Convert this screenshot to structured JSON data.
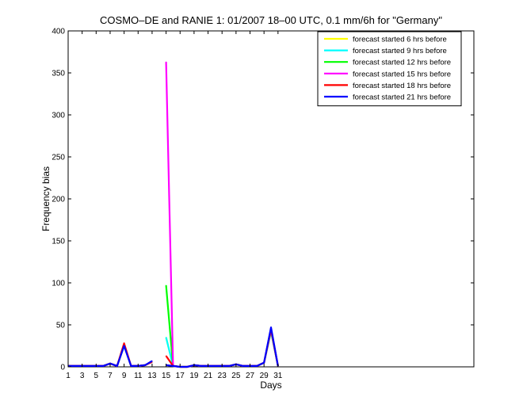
{
  "chart_data": {
    "type": "line",
    "title": "COSMO–DE and RANIE 1: 01/2007 18–00 UTC, 0.1 mm/6h for \"Germany\"",
    "xlabel": "Days",
    "ylabel": "Frequency bias",
    "xlim": [
      1,
      59
    ],
    "ylim": [
      0,
      400
    ],
    "xticks": [
      1,
      3,
      5,
      7,
      9,
      11,
      13,
      15,
      17,
      19,
      21,
      23,
      25,
      27,
      29,
      31
    ],
    "yticks": [
      0,
      50,
      100,
      150,
      200,
      250,
      300,
      350,
      400
    ],
    "grid": false,
    "legend_position": "top-right",
    "series": [
      {
        "name": "forecast started 6 hrs before",
        "color": "#ffff00",
        "points": [
          [
            1,
            1
          ],
          [
            2,
            1
          ],
          [
            3,
            1
          ],
          [
            4,
            1
          ],
          [
            5,
            1
          ],
          [
            6,
            1
          ],
          [
            7,
            4
          ],
          [
            8,
            1
          ],
          [
            9,
            25
          ],
          [
            10,
            1
          ],
          [
            11,
            1
          ],
          [
            12,
            2
          ],
          [
            13,
            6
          ],
          [
            14,
            null
          ],
          [
            15,
            35
          ],
          [
            16,
            1
          ],
          [
            17,
            0
          ],
          [
            18,
            0
          ],
          [
            19,
            2
          ],
          [
            20,
            1
          ],
          [
            21,
            1
          ],
          [
            22,
            1
          ],
          [
            23,
            1
          ],
          [
            24,
            1
          ],
          [
            25,
            3
          ],
          [
            26,
            1
          ],
          [
            27,
            1
          ],
          [
            28,
            1
          ],
          [
            29,
            5
          ],
          [
            30,
            42
          ],
          [
            31,
            1
          ]
        ]
      },
      {
        "name": "forecast started 9 hrs before",
        "color": "#00ffff",
        "points": [
          [
            1,
            1
          ],
          [
            2,
            1
          ],
          [
            3,
            1
          ],
          [
            4,
            1
          ],
          [
            5,
            1
          ],
          [
            6,
            1
          ],
          [
            7,
            4
          ],
          [
            8,
            1
          ],
          [
            9,
            25
          ],
          [
            10,
            1
          ],
          [
            11,
            1
          ],
          [
            12,
            2
          ],
          [
            13,
            6
          ],
          [
            14,
            null
          ],
          [
            15,
            35
          ],
          [
            16,
            1
          ],
          [
            17,
            0
          ],
          [
            18,
            0
          ],
          [
            19,
            2
          ],
          [
            20,
            1
          ],
          [
            21,
            1
          ],
          [
            22,
            1
          ],
          [
            23,
            1
          ],
          [
            24,
            1
          ],
          [
            25,
            3
          ],
          [
            26,
            1
          ],
          [
            27,
            1
          ],
          [
            28,
            1
          ],
          [
            29,
            5
          ],
          [
            30,
            42
          ],
          [
            31,
            1
          ]
        ]
      },
      {
        "name": "forecast started 12 hrs before",
        "color": "#00ff00",
        "points": [
          [
            1,
            1
          ],
          [
            2,
            1
          ],
          [
            3,
            1
          ],
          [
            4,
            1
          ],
          [
            5,
            1
          ],
          [
            6,
            1
          ],
          [
            7,
            4
          ],
          [
            8,
            1
          ],
          [
            9,
            26
          ],
          [
            10,
            1
          ],
          [
            11,
            1
          ],
          [
            12,
            2
          ],
          [
            13,
            6
          ],
          [
            14,
            null
          ],
          [
            15,
            97
          ],
          [
            16,
            1
          ],
          [
            17,
            0
          ],
          [
            18,
            0
          ],
          [
            19,
            2
          ],
          [
            20,
            1
          ],
          [
            21,
            1
          ],
          [
            22,
            1
          ],
          [
            23,
            1
          ],
          [
            24,
            1
          ],
          [
            25,
            3
          ],
          [
            26,
            1
          ],
          [
            27,
            1
          ],
          [
            28,
            1
          ],
          [
            29,
            5
          ],
          [
            30,
            43
          ],
          [
            31,
            1
          ]
        ]
      },
      {
        "name": "forecast started 15 hrs before",
        "color": "#ff00ff",
        "points": [
          [
            1,
            1
          ],
          [
            2,
            1
          ],
          [
            3,
            1
          ],
          [
            4,
            1
          ],
          [
            5,
            1
          ],
          [
            6,
            1
          ],
          [
            7,
            4
          ],
          [
            8,
            1
          ],
          [
            9,
            26
          ],
          [
            10,
            1
          ],
          [
            11,
            1
          ],
          [
            12,
            2
          ],
          [
            13,
            6
          ],
          [
            14,
            null
          ],
          [
            15,
            363
          ],
          [
            16,
            1
          ],
          [
            17,
            0
          ],
          [
            18,
            0
          ],
          [
            19,
            2
          ],
          [
            20,
            1
          ],
          [
            21,
            1
          ],
          [
            22,
            1
          ],
          [
            23,
            1
          ],
          [
            24,
            1
          ],
          [
            25,
            3
          ],
          [
            26,
            1
          ],
          [
            27,
            1
          ],
          [
            28,
            1
          ],
          [
            29,
            5
          ],
          [
            30,
            44
          ],
          [
            31,
            1
          ]
        ]
      },
      {
        "name": "forecast started 18 hrs before",
        "color": "#ff0000",
        "points": [
          [
            1,
            1
          ],
          [
            2,
            1
          ],
          [
            3,
            1
          ],
          [
            4,
            1
          ],
          [
            5,
            1
          ],
          [
            6,
            1
          ],
          [
            7,
            4
          ],
          [
            8,
            1
          ],
          [
            9,
            28
          ],
          [
            10,
            1
          ],
          [
            11,
            1
          ],
          [
            12,
            2
          ],
          [
            13,
            6
          ],
          [
            14,
            null
          ],
          [
            15,
            13
          ],
          [
            16,
            1
          ],
          [
            17,
            0
          ],
          [
            18,
            0
          ],
          [
            19,
            2
          ],
          [
            20,
            1
          ],
          [
            21,
            1
          ],
          [
            22,
            1
          ],
          [
            23,
            1
          ],
          [
            24,
            1
          ],
          [
            25,
            3
          ],
          [
            26,
            1
          ],
          [
            27,
            1
          ],
          [
            28,
            1
          ],
          [
            29,
            5
          ],
          [
            30,
            45
          ],
          [
            31,
            1
          ]
        ]
      },
      {
        "name": "forecast started 21 hrs before",
        "color": "#0000ff",
        "points": [
          [
            1,
            1
          ],
          [
            2,
            1
          ],
          [
            3,
            1
          ],
          [
            4,
            1
          ],
          [
            5,
            1
          ],
          [
            6,
            1
          ],
          [
            7,
            4
          ],
          [
            8,
            1
          ],
          [
            9,
            25
          ],
          [
            10,
            1
          ],
          [
            11,
            1
          ],
          [
            12,
            2
          ],
          [
            13,
            7
          ],
          [
            14,
            null
          ],
          [
            15,
            2
          ],
          [
            16,
            1
          ],
          [
            17,
            0
          ],
          [
            18,
            0
          ],
          [
            19,
            2
          ],
          [
            20,
            1
          ],
          [
            21,
            1
          ],
          [
            22,
            1
          ],
          [
            23,
            1
          ],
          [
            24,
            1
          ],
          [
            25,
            3
          ],
          [
            26,
            1
          ],
          [
            27,
            1
          ],
          [
            28,
            1
          ],
          [
            29,
            5
          ],
          [
            30,
            47
          ],
          [
            31,
            1
          ]
        ]
      }
    ]
  }
}
